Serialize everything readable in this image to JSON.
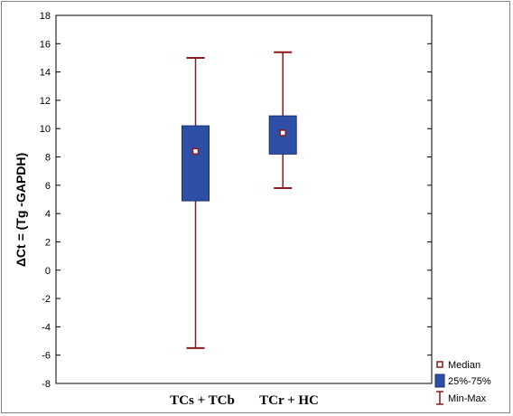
{
  "chart_data": {
    "type": "box",
    "ylabel": "ΔCt = (Tg -GAPDH)",
    "ylim": [
      -8,
      18
    ],
    "yticks": [
      -8,
      -6,
      -4,
      -2,
      0,
      2,
      4,
      6,
      8,
      10,
      12,
      14,
      16,
      18
    ],
    "grid": false,
    "legend_position": "bottom-right",
    "categories": [
      "TCs + TCb",
      "TCr + HC"
    ],
    "series": [
      {
        "category": "TCs + TCb",
        "min": -5.5,
        "q1": 4.9,
        "median": 8.4,
        "q3": 10.2,
        "max": 15.0
      },
      {
        "category": "TCr + HC",
        "min": 5.8,
        "q1": 8.2,
        "median": 9.7,
        "q3": 10.9,
        "max": 15.4
      }
    ],
    "legend": [
      {
        "key": "median",
        "label": "Median"
      },
      {
        "key": "iqr",
        "label": "25%-75%"
      },
      {
        "key": "range",
        "label": "Min-Max"
      }
    ],
    "colors": {
      "box_fill": "#2e4fa6",
      "box_edge": "#1a2f75",
      "whisker": "#8b1a1a",
      "median_marker": "#8b1a1a"
    }
  }
}
